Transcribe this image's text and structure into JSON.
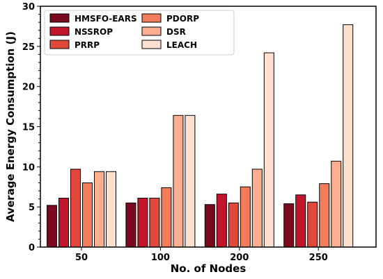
{
  "chart_data": {
    "type": "bar",
    "title": "",
    "xlabel": "No. of Nodes",
    "ylabel": "Average Energy Consumption (J)",
    "categories": [
      "50",
      "100",
      "200",
      "250"
    ],
    "ylim": [
      0,
      30
    ],
    "yticks": [
      0,
      5,
      10,
      15,
      20,
      25,
      30
    ],
    "grid": false,
    "legend_position": "top-left",
    "series": [
      {
        "name": "HMSFO-EARS",
        "color": "#7a0a1e",
        "values": [
          5.2,
          5.5,
          5.3,
          5.4
        ]
      },
      {
        "name": "NSSROP",
        "color": "#c2152b",
        "values": [
          6.1,
          6.1,
          6.6,
          6.5
        ]
      },
      {
        "name": "PRRP",
        "color": "#e2473b",
        "values": [
          9.7,
          6.1,
          5.5,
          5.6
        ]
      },
      {
        "name": "PDORP",
        "color": "#f37c5d",
        "values": [
          8.0,
          7.4,
          7.5,
          7.9
        ]
      },
      {
        "name": "DSR",
        "color": "#fbae90",
        "values": [
          9.4,
          16.4,
          9.7,
          10.7
        ]
      },
      {
        "name": "LEACH",
        "color": "#fde0d0",
        "values": [
          9.4,
          16.4,
          24.2,
          27.7
        ]
      }
    ]
  }
}
